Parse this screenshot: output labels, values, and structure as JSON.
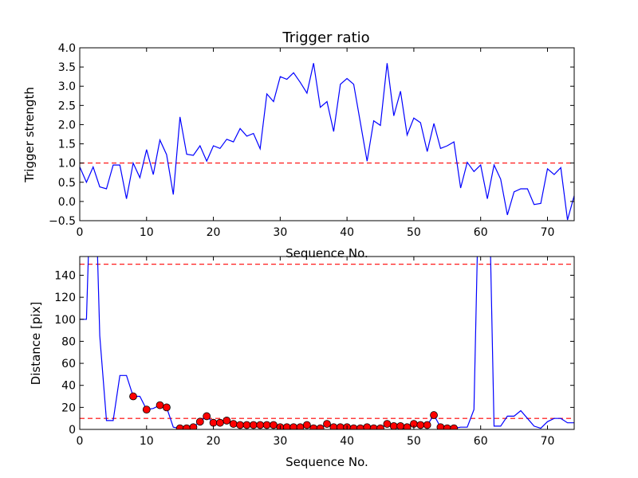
{
  "chart_data": [
    {
      "type": "line",
      "title": "Trigger ratio",
      "xlabel": "Sequence No.",
      "ylabel": "Trigger strength",
      "xlim": [
        0,
        74
      ],
      "ylim": [
        -0.5,
        4.0
      ],
      "xticks": [
        0,
        10,
        20,
        30,
        40,
        50,
        60,
        70
      ],
      "yticks": [
        -0.5,
        0.0,
        0.5,
        1.0,
        1.5,
        2.0,
        2.5,
        3.0,
        3.5,
        4.0
      ],
      "ytick_labels": [
        "−0.5",
        "0.0",
        "0.5",
        "1.0",
        "1.5",
        "2.0",
        "2.5",
        "3.0",
        "3.5",
        "4.0"
      ],
      "threshold": 1.0,
      "colors": {
        "line": "#0000ff",
        "threshold": "#ff0000"
      },
      "series": [
        {
          "x": [
            0,
            1,
            2,
            3,
            4,
            5,
            6,
            7,
            8,
            9,
            10,
            11,
            12,
            13,
            14,
            15,
            16,
            17,
            18,
            19,
            20,
            21,
            22,
            23,
            24,
            25,
            26,
            27,
            28,
            29,
            30,
            31,
            32,
            33,
            34,
            35,
            36,
            37,
            38,
            39,
            40,
            41,
            42,
            43,
            44,
            45,
            46,
            47,
            48,
            49,
            50,
            51,
            52,
            53,
            54,
            55,
            56,
            57,
            58,
            59,
            60,
            61,
            62,
            63,
            64,
            65,
            66,
            67,
            68,
            69,
            70,
            71,
            72,
            73,
            74
          ],
          "y": [
            0.9,
            0.5,
            0.9,
            0.38,
            0.33,
            0.95,
            0.95,
            0.07,
            1.0,
            0.62,
            1.35,
            0.7,
            1.6,
            1.22,
            0.18,
            2.2,
            1.23,
            1.2,
            1.45,
            1.05,
            1.45,
            1.38,
            1.62,
            1.55,
            1.9,
            1.7,
            1.77,
            1.37,
            2.8,
            2.6,
            3.25,
            3.18,
            3.35,
            3.1,
            2.82,
            3.6,
            2.45,
            2.6,
            1.82,
            3.05,
            3.2,
            3.05,
            2.05,
            1.05,
            2.1,
            1.98,
            3.6,
            2.23,
            2.87,
            1.73,
            2.17,
            2.05,
            1.3,
            2.03,
            1.38,
            1.45,
            1.55,
            0.35,
            1.02,
            0.78,
            0.95,
            0.07,
            0.95,
            0.58,
            -0.35,
            0.25,
            0.33,
            0.33,
            -0.08,
            -0.05,
            0.85,
            0.7,
            0.88,
            -0.48,
            0.15
          ]
        }
      ]
    },
    {
      "type": "line",
      "xlabel": "Sequence No.",
      "ylabel": "Distance [pix]",
      "xlim": [
        0,
        74
      ],
      "ylim": [
        0,
        157
      ],
      "xticks": [
        0,
        10,
        20,
        30,
        40,
        50,
        60,
        70
      ],
      "yticks": [
        0,
        20,
        40,
        60,
        80,
        100,
        120,
        140
      ],
      "thresholds": [
        150,
        10
      ],
      "colors": {
        "line": "#0000ff",
        "threshold": "#ff0000",
        "marker": "#ff0000"
      },
      "series": [
        {
          "x": [
            0,
            1,
            2,
            3,
            4,
            5,
            6,
            7,
            8,
            9,
            10,
            11,
            12,
            13,
            14,
            15,
            16,
            17,
            18,
            19,
            20,
            21,
            22,
            23,
            24,
            25,
            26,
            27,
            28,
            29,
            30,
            31,
            32,
            33,
            34,
            35,
            36,
            37,
            38,
            39,
            40,
            41,
            42,
            43,
            44,
            45,
            46,
            47,
            48,
            49,
            50,
            51,
            52,
            53,
            54,
            55,
            56,
            57,
            58,
            59,
            60,
            61,
            62,
            63,
            64,
            65,
            66,
            67,
            68,
            69,
            70,
            71,
            72,
            73,
            74
          ],
          "y": [
            100,
            100,
            300,
            85,
            8,
            8,
            49,
            49,
            30,
            30,
            18,
            19,
            22,
            20,
            2,
            1,
            1,
            2,
            7,
            12,
            6,
            6,
            8,
            5,
            4,
            4,
            4,
            4,
            4,
            4,
            2,
            2,
            2,
            2,
            4,
            1,
            1,
            5,
            2,
            2,
            2,
            1,
            1,
            2,
            1,
            1,
            5,
            3,
            3,
            2,
            5,
            4,
            4,
            13,
            2,
            1,
            1,
            2,
            2,
            18,
            300,
            300,
            3,
            3,
            12,
            12,
            17,
            10,
            3,
            1,
            7,
            10,
            10,
            6,
            6
          ]
        },
        {
          "name": "markers",
          "x": [
            8,
            10,
            12,
            13,
            15,
            16,
            17,
            18,
            19,
            20,
            21,
            22,
            23,
            24,
            25,
            26,
            27,
            28,
            29,
            30,
            31,
            32,
            33,
            34,
            35,
            36,
            37,
            38,
            39,
            40,
            41,
            42,
            43,
            44,
            45,
            46,
            47,
            48,
            49,
            50,
            51,
            52,
            53,
            54,
            55,
            56
          ],
          "y": [
            30,
            18,
            22,
            20,
            1,
            1,
            2,
            7,
            12,
            6,
            6,
            8,
            5,
            4,
            4,
            4,
            4,
            4,
            4,
            2,
            2,
            2,
            2,
            4,
            1,
            1,
            5,
            2,
            2,
            2,
            1,
            1,
            2,
            1,
            1,
            5,
            3,
            3,
            2,
            5,
            4,
            4,
            13,
            2,
            1,
            1
          ]
        }
      ]
    }
  ]
}
